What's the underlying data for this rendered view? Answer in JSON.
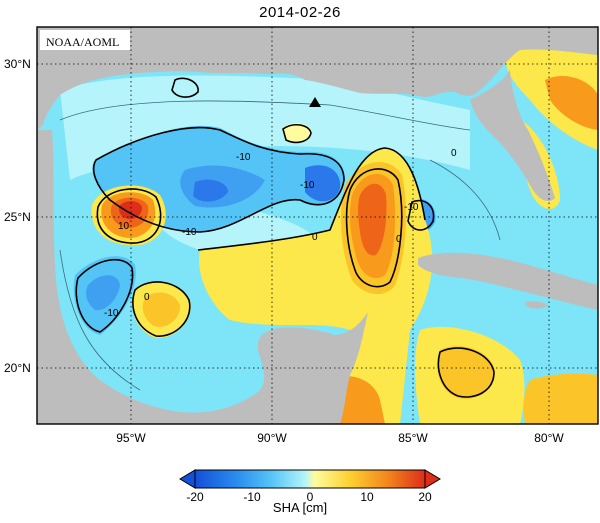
{
  "title": "2014-02-26",
  "credit": "NOAA/AOML",
  "lat_ticks": [
    "30°N",
    "25°N",
    "20°N"
  ],
  "lon_ticks": [
    "95°W",
    "90°W",
    "85°W",
    "80°W"
  ],
  "colorbar": {
    "label": "SHA [cm]",
    "ticks": [
      "-20",
      "-10",
      "0",
      "10",
      "20"
    ],
    "colors": [
      "#1450d8",
      "#2a78ea",
      "#3fa0f2",
      "#54c4f6",
      "#7ee4f8",
      "#b4f4fa",
      "#fffca0",
      "#fce84a",
      "#fbc428",
      "#f89a1c",
      "#ee6418",
      "#dd2e1a"
    ]
  },
  "contour_labels": [
    "10",
    "-10",
    "-10",
    "-10",
    "0",
    "0",
    "0",
    "-10",
    "-10",
    "0",
    "-10",
    "-10",
    "0",
    "0"
  ],
  "colors": {
    "land": "#bdbdbd",
    "water_base": "#7ee4f8",
    "marker": "#000000"
  }
}
